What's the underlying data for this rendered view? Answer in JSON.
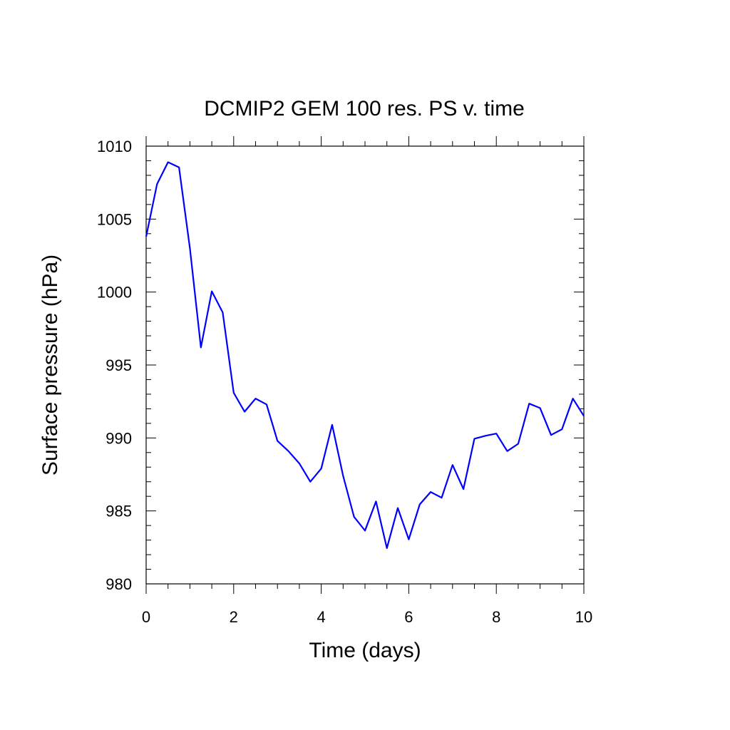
{
  "chart_data": {
    "type": "line",
    "title": "DCMIP2 GEM 100 res. PS v. time",
    "xlabel": "Time (days)",
    "ylabel": "Surface pressure (hPa)",
    "xlim": [
      0,
      10
    ],
    "ylim": [
      980,
      1010
    ],
    "xticks": [
      0,
      2,
      4,
      6,
      8,
      10
    ],
    "yticks": [
      980,
      985,
      990,
      995,
      1000,
      1005,
      1010
    ],
    "xtick_labels": [
      "0",
      "2",
      "4",
      "6",
      "8",
      "10"
    ],
    "ytick_labels": [
      "980",
      "985",
      "990",
      "995",
      "1000",
      "1005",
      "1010"
    ],
    "grid": false,
    "line_color": "#0000ff",
    "series": [
      {
        "x": [
          0,
          0.25,
          0.5,
          0.75,
          1,
          1.25,
          1.5,
          1.75,
          2,
          2.25,
          2.5,
          2.75,
          3,
          3.25,
          3.5,
          3.75,
          4,
          4.25,
          4.5,
          4.75,
          5,
          5.25,
          5.5,
          5.75,
          6,
          6.25,
          6.5,
          6.75,
          7,
          7.25,
          7.5,
          7.75,
          8,
          8.25,
          8.5,
          8.75,
          9,
          9.25,
          9.5,
          9.75,
          10
        ],
        "values": [
          1003.8,
          1007.4,
          1008.9,
          1008.55,
          1003.0,
          996.2,
          1000.05,
          998.6,
          993.1,
          991.8,
          992.7,
          992.3,
          989.8,
          989.1,
          988.25,
          987.0,
          987.9,
          990.9,
          987.4,
          984.6,
          983.65,
          985.65,
          982.45,
          985.2,
          983.05,
          985.45,
          986.3,
          985.9,
          988.15,
          986.5,
          989.95,
          990.15,
          990.3,
          989.1,
          989.6,
          992.35,
          992.05,
          990.2,
          990.6,
          992.7,
          991.5
        ]
      }
    ]
  }
}
